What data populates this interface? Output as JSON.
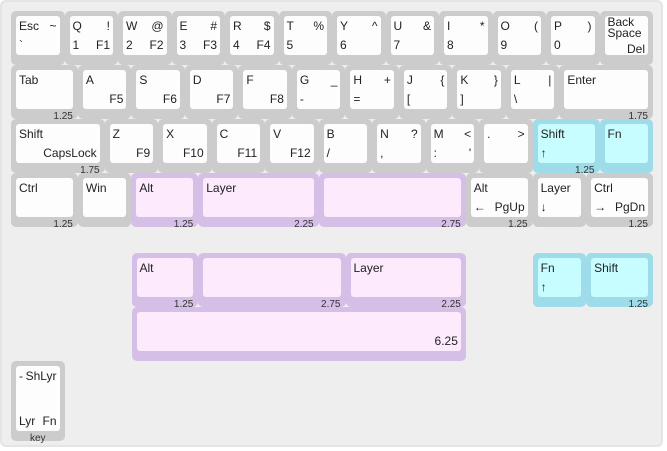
{
  "colors": {
    "gray": "#cccccc",
    "purple": "#d6bfe6",
    "teal": "#9ddce8",
    "background": "#eeeeee"
  },
  "rows": [
    {
      "keys": [
        {
          "tl": "Esc",
          "tr": "~",
          "bl": "`"
        },
        {
          "tl": "Q",
          "tr": "!",
          "bl": "1",
          "br": "F1"
        },
        {
          "tl": "W",
          "tr": "@",
          "bl": "2",
          "br": "F2"
        },
        {
          "tl": "E",
          "tr": "#",
          "bl": "3",
          "br": "F3"
        },
        {
          "tl": "R",
          "tr": "$",
          "bl": "4",
          "br": "F4"
        },
        {
          "tl": "T",
          "tr": "%",
          "bl": "5"
        },
        {
          "tl": "Y",
          "tr": "^",
          "bl": "6"
        },
        {
          "tl": "U",
          "tr": "&",
          "bl": "7"
        },
        {
          "tl": "I",
          "tr": "*",
          "bl": "8"
        },
        {
          "tl": "O",
          "tr": "(",
          "bl": "9"
        },
        {
          "tl": "P",
          "tr": ")",
          "bl": "0"
        },
        {
          "tl": "Back\nSpace",
          "br": "Del"
        }
      ]
    },
    {
      "keys": [
        {
          "tl": "Tab",
          "size": "1.25"
        },
        {
          "tl": "A",
          "br": "F5"
        },
        {
          "tl": "S",
          "br": "F6"
        },
        {
          "tl": "D",
          "br": "F7"
        },
        {
          "tl": "F",
          "br": "F8"
        },
        {
          "tl": "G",
          "tr": "_",
          "bl": "-"
        },
        {
          "tl": "H",
          "tr": "+",
          "bl": "="
        },
        {
          "tl": "J",
          "tr": "{",
          "bl": "["
        },
        {
          "tl": "K",
          "tr": "}",
          "bl": "]"
        },
        {
          "tl": "L",
          "tr": "|",
          "bl": "\\"
        },
        {
          "tl": "Enter",
          "size": "1.75"
        }
      ]
    },
    {
      "keys": [
        {
          "tl": "Shift",
          "br": "CapsLock",
          "size": "1.75"
        },
        {
          "tl": "Z",
          "br": "F9"
        },
        {
          "tl": "X",
          "br": "F10"
        },
        {
          "tl": "C",
          "br": "F11"
        },
        {
          "tl": "V",
          "br": "F12"
        },
        {
          "tl": "B",
          "bl": "/"
        },
        {
          "tl": "N",
          "tr": "?",
          "bl": ","
        },
        {
          "tl": "M",
          "tr": "<",
          "bl": ":",
          "br": "'"
        },
        {
          "tl": ".",
          "tr": ">"
        },
        {
          "tl": "Shift",
          "bl": "↑",
          "size": "1.25",
          "color": "teal"
        },
        {
          "tl": "Fn",
          "color": "teal"
        }
      ]
    },
    {
      "keys": [
        {
          "tl": "Ctrl",
          "size": "1.25"
        },
        {
          "tl": "Win"
        },
        {
          "tl": "Alt",
          "size": "1.25",
          "color": "purple"
        },
        {
          "tl": "Layer",
          "size": "2.25",
          "color": "purple"
        },
        {
          "size": "2.75",
          "color": "purple"
        },
        {
          "tl": "Alt",
          "bl": "←",
          "br": "PgUp",
          "size": "1.25"
        },
        {
          "tl": "Layer",
          "bl": "↓"
        },
        {
          "tl": "Ctrl",
          "bl": "→",
          "br": "PgDn",
          "size": "1.25"
        }
      ]
    },
    {
      "keys": [
        {
          "tl": "Alt",
          "size": "1.25",
          "color": "purple"
        },
        {
          "size": "2.75",
          "color": "purple"
        },
        {
          "tl": "Layer",
          "size": "2.25",
          "color": "purple"
        },
        {
          "tl": "Fn",
          "bl": "↑",
          "color": "teal"
        },
        {
          "tl": "Shift",
          "size": "1.25",
          "color": "teal"
        }
      ]
    },
    {
      "keys": [
        {
          "br": "6.25",
          "color": "purple"
        }
      ]
    }
  ],
  "legend_key": {
    "tl": "-",
    "tr": "ShLyr",
    "bl": "Lyr",
    "br": "Fn",
    "label": "key"
  }
}
